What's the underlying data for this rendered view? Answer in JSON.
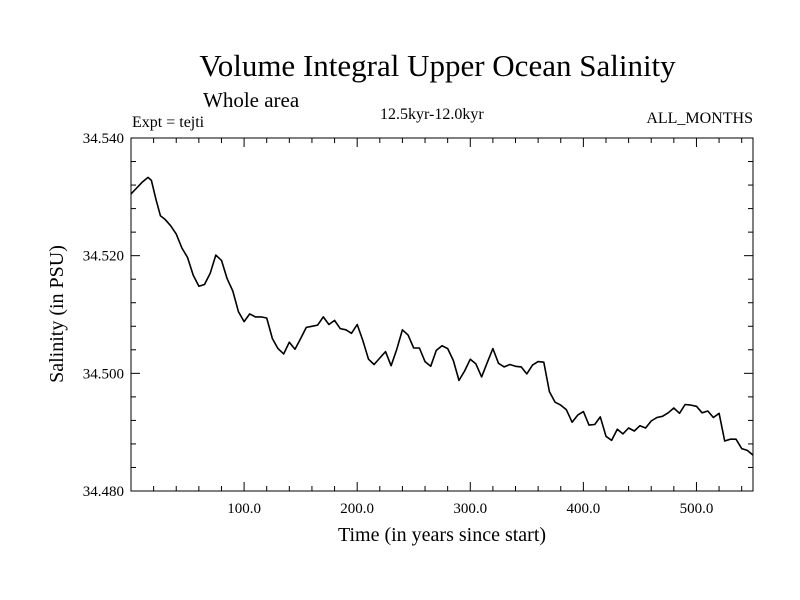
{
  "chart_data": {
    "type": "line",
    "title": "Volume Integral Upper Ocean Salinity",
    "subtitle": "Whole area",
    "experiment": "Expt = tejti",
    "period": "12.5kyr-12.0kyr",
    "months": "ALL_MONTHS",
    "xlabel": "Time (in years since start)",
    "ylabel": "Salinity (in PSU)",
    "xlim": [
      0,
      550
    ],
    "ylim": [
      34.48,
      34.54
    ],
    "xticks": [
      100,
      200,
      300,
      400,
      500
    ],
    "xtick_labels": [
      "100.0",
      "200.0",
      "300.0",
      "400.0",
      "500.0"
    ],
    "yticks": [
      34.48,
      34.5,
      34.52,
      34.54
    ],
    "ytick_labels": [
      "34.480",
      "34.500",
      "34.520",
      "34.540"
    ],
    "grid": false,
    "series": [
      {
        "name": "Salinity",
        "x": [
          0,
          5,
          10,
          15,
          18,
          22,
          26,
          30,
          35,
          40,
          45,
          50,
          55,
          60,
          65,
          70,
          75,
          80,
          85,
          90,
          95,
          100,
          105,
          110,
          115,
          120,
          125,
          130,
          135,
          140,
          145,
          150,
          155,
          160,
          165,
          170,
          175,
          180,
          185,
          190,
          195,
          200,
          205,
          210,
          215,
          220,
          225,
          230,
          235,
          240,
          245,
          250,
          255,
          260,
          265,
          270,
          275,
          280,
          285,
          290,
          295,
          300,
          305,
          310,
          315,
          320,
          325,
          330,
          335,
          340,
          345,
          350,
          355,
          360,
          365,
          370,
          375,
          380,
          385,
          390,
          395,
          400,
          405,
          410,
          415,
          420,
          425,
          430,
          435,
          440,
          445,
          450,
          455,
          460,
          465,
          470,
          475,
          480,
          485,
          490,
          495,
          500,
          505,
          510,
          515,
          520,
          525,
          530,
          535,
          540,
          545,
          550
        ],
        "values": [
          34.5305,
          34.5315,
          34.5325,
          34.5333,
          34.5328,
          34.5296,
          34.5268,
          34.5262,
          34.5251,
          34.5237,
          34.5213,
          34.5197,
          34.5167,
          34.5148,
          34.5151,
          34.517,
          34.5201,
          34.5192,
          34.5161,
          34.514,
          34.5105,
          34.5088,
          34.5101,
          34.5096,
          34.5096,
          34.5094,
          34.5059,
          34.5042,
          34.5033,
          34.5053,
          34.5041,
          34.5059,
          34.5078,
          34.508,
          34.5082,
          34.5096,
          34.5083,
          34.509,
          34.5076,
          34.5074,
          34.5068,
          34.5083,
          34.5056,
          34.5024,
          34.5015,
          34.5026,
          34.5037,
          34.5013,
          34.5041,
          34.5074,
          34.5065,
          34.5043,
          34.5043,
          34.502,
          34.5012,
          34.5039,
          34.5047,
          34.5042,
          34.5022,
          34.4988,
          34.5004,
          34.5024,
          34.5016,
          34.4994,
          34.5018,
          34.5042,
          34.5017,
          34.5011,
          34.5015,
          34.5012,
          34.5011,
          34.4999,
          34.5014,
          34.502,
          34.5019,
          34.4969,
          34.4951,
          34.4946,
          34.4938,
          34.4917,
          34.4929,
          34.4935,
          34.4912,
          34.4913,
          34.4926,
          34.4893,
          34.4886,
          34.4905,
          34.4897,
          34.4907,
          34.4902,
          34.4911,
          34.4907,
          34.4919,
          34.4925,
          34.4927,
          34.4933,
          34.4941,
          34.4932,
          34.4947,
          34.4946,
          34.4944,
          34.4933,
          34.4936,
          34.4925,
          34.4932,
          34.4885,
          34.4888,
          34.4888,
          34.4872,
          34.4869,
          34.4861
        ]
      }
    ]
  }
}
